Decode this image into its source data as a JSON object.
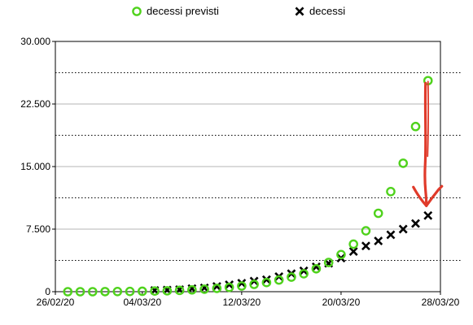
{
  "chart_data": {
    "type": "scatter",
    "title": "",
    "xlabel": "",
    "ylabel": "",
    "x_tick_labels": [
      "26/02/20",
      "04/03/20",
      "12/03/20",
      "20/03/20",
      "28/03/20"
    ],
    "y_tick_labels": [
      "0",
      "7.500",
      "15.000",
      "22.500",
      "30.000"
    ],
    "ylim": [
      0,
      30000
    ],
    "y_ticks": [
      0,
      7500,
      15000,
      22500,
      30000
    ],
    "x_tick_dates": [
      "2020-02-26",
      "2020-03-04",
      "2020-03-12",
      "2020-03-20",
      "2020-03-28"
    ],
    "xlim": [
      "2020-02-26",
      "2020-03-28"
    ],
    "grid": "horizontal",
    "legend_position": "top",
    "series": [
      {
        "name": "decessi previsti",
        "marker": "open-circle",
        "color": "#4fd21c",
        "points": [
          {
            "x": "2020-02-27",
            "y": 0
          },
          {
            "x": "2020-02-28",
            "y": 0
          },
          {
            "x": "2020-02-29",
            "y": 0
          },
          {
            "x": "2020-03-01",
            "y": 10
          },
          {
            "x": "2020-03-02",
            "y": 20
          },
          {
            "x": "2020-03-03",
            "y": 30
          },
          {
            "x": "2020-03-04",
            "y": 50
          },
          {
            "x": "2020-03-05",
            "y": 80
          },
          {
            "x": "2020-03-06",
            "y": 110
          },
          {
            "x": "2020-03-07",
            "y": 160
          },
          {
            "x": "2020-03-08",
            "y": 220
          },
          {
            "x": "2020-03-09",
            "y": 300
          },
          {
            "x": "2020-03-10",
            "y": 400
          },
          {
            "x": "2020-03-11",
            "y": 520
          },
          {
            "x": "2020-03-12",
            "y": 680
          },
          {
            "x": "2020-03-13",
            "y": 880
          },
          {
            "x": "2020-03-14",
            "y": 1100
          },
          {
            "x": "2020-03-15",
            "y": 1400
          },
          {
            "x": "2020-03-16",
            "y": 1750
          },
          {
            "x": "2020-03-17",
            "y": 2150
          },
          {
            "x": "2020-03-18",
            "y": 2750
          },
          {
            "x": "2020-03-19",
            "y": 3500
          },
          {
            "x": "2020-03-20",
            "y": 4450
          },
          {
            "x": "2020-03-21",
            "y": 5700
          },
          {
            "x": "2020-03-22",
            "y": 7300
          },
          {
            "x": "2020-03-23",
            "y": 9400
          },
          {
            "x": "2020-03-24",
            "y": 12000
          },
          {
            "x": "2020-03-25",
            "y": 15400
          },
          {
            "x": "2020-03-26",
            "y": 19800
          },
          {
            "x": "2020-03-27",
            "y": 25300
          }
        ]
      },
      {
        "name": "decessi",
        "marker": "x",
        "color": "#000000",
        "points": [
          {
            "x": "2020-03-05",
            "y": 150
          },
          {
            "x": "2020-03-06",
            "y": 200
          },
          {
            "x": "2020-03-07",
            "y": 250
          },
          {
            "x": "2020-03-08",
            "y": 370
          },
          {
            "x": "2020-03-09",
            "y": 460
          },
          {
            "x": "2020-03-10",
            "y": 630
          },
          {
            "x": "2020-03-11",
            "y": 830
          },
          {
            "x": "2020-03-12",
            "y": 1020
          },
          {
            "x": "2020-03-13",
            "y": 1270
          },
          {
            "x": "2020-03-14",
            "y": 1440
          },
          {
            "x": "2020-03-15",
            "y": 1810
          },
          {
            "x": "2020-03-16",
            "y": 2160
          },
          {
            "x": "2020-03-17",
            "y": 2500
          },
          {
            "x": "2020-03-18",
            "y": 2980
          },
          {
            "x": "2020-03-19",
            "y": 3400
          },
          {
            "x": "2020-03-20",
            "y": 4030
          },
          {
            "x": "2020-03-21",
            "y": 4820
          },
          {
            "x": "2020-03-22",
            "y": 5480
          },
          {
            "x": "2020-03-23",
            "y": 6080
          },
          {
            "x": "2020-03-24",
            "y": 6820
          },
          {
            "x": "2020-03-25",
            "y": 7500
          },
          {
            "x": "2020-03-26",
            "y": 8170
          },
          {
            "x": "2020-03-27",
            "y": 9130
          }
        ]
      }
    ],
    "annotation": {
      "shape": "hand-drawn-arrow",
      "color": "#e03a2a",
      "from": {
        "x": "2020-03-27",
        "y": 25000
      },
      "to": {
        "x": "2020-03-27",
        "y": 10300
      }
    }
  }
}
